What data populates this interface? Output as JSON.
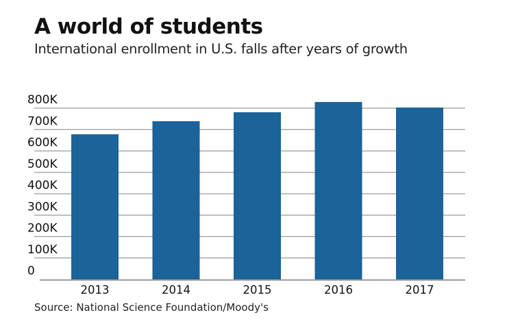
{
  "chart_data": {
    "type": "bar",
    "title": "A world of students",
    "subtitle": "International enrollment in U.S. falls after years of growth",
    "source": "Source: National Science Foundation/Moody's",
    "xlabel": "",
    "ylabel": "",
    "categories": [
      "2013",
      "2014",
      "2015",
      "2016",
      "2017"
    ],
    "values": [
      678000,
      739000,
      781000,
      829000,
      803000
    ],
    "ylim": [
      0,
      800000
    ],
    "yticks": [
      0,
      100000,
      200000,
      300000,
      400000,
      500000,
      600000,
      700000,
      800000
    ],
    "ytick_labels": [
      "0",
      "100K",
      "200K",
      "300K",
      "400K",
      "500K",
      "600K",
      "700K",
      "800K"
    ],
    "grid": true,
    "legend": "none",
    "colors": {
      "bar": "#1b6399",
      "grid": "#9a9a9a",
      "axis": "#7a7a7a"
    }
  }
}
